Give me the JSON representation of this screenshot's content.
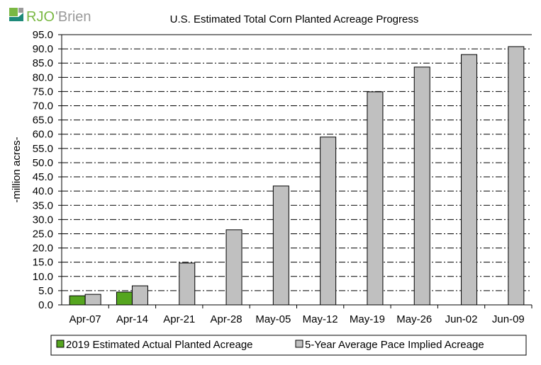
{
  "logo": {
    "text": "RJO'Brien",
    "colors": {
      "green": "#7ab843",
      "gray": "#9a9a9a",
      "teal": "#1e8a7a"
    }
  },
  "chart_data": {
    "type": "bar",
    "title": "U.S. Estimated Total Corn Planted Acreage Progress",
    "xlabel": "",
    "ylabel": "-million acres-",
    "ylim": [
      0,
      95
    ],
    "ytick_step": 5,
    "grid": true,
    "legend_placement": "bottom",
    "categories": [
      "Apr-07",
      "Apr-14",
      "Apr-21",
      "Apr-28",
      "May-05",
      "May-12",
      "May-19",
      "May-26",
      "Jun-02",
      "Jun-09"
    ],
    "series": [
      {
        "name": "2019 Estimated Actual Planted Acreage",
        "color": "#55a51f",
        "values": [
          3.2,
          4.5,
          null,
          null,
          null,
          null,
          null,
          null,
          null,
          null
        ]
      },
      {
        "name": "5-Year Average Pace Implied Acreage",
        "color": "#c0c0c0",
        "values": [
          3.7,
          6.7,
          14.7,
          26.4,
          41.8,
          59.0,
          74.9,
          83.6,
          88.0,
          90.8
        ]
      }
    ]
  }
}
